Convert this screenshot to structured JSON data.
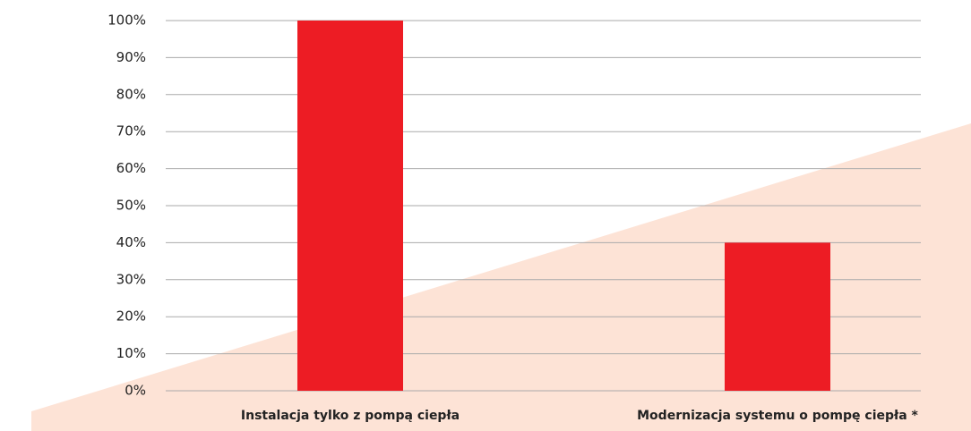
{
  "chart_data": {
    "type": "bar",
    "categories": [
      "Instalacja tylko z pompą ciepła",
      "Modernizacja systemu o pompę ciepła *"
    ],
    "values": [
      100,
      40
    ],
    "color": "#ed1c24",
    "ylim": [
      0,
      100
    ],
    "yticks": [
      {
        "value": 0,
        "label": "0%"
      },
      {
        "value": 10,
        "label": "10%"
      },
      {
        "value": 20,
        "label": "20%"
      },
      {
        "value": 30,
        "label": "30%"
      },
      {
        "value": 40,
        "label": "40%"
      },
      {
        "value": 50,
        "label": "50%"
      },
      {
        "value": 60,
        "label": "60%"
      },
      {
        "value": 70,
        "label": "70%"
      },
      {
        "value": 80,
        "label": "80%"
      },
      {
        "value": 90,
        "label": "90%"
      },
      {
        "value": 100,
        "label": "100%"
      }
    ],
    "grid": true
  }
}
